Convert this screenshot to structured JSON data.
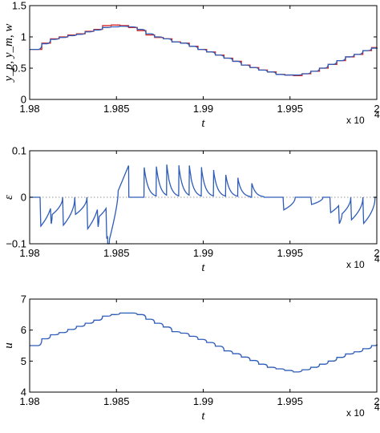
{
  "chart_data": [
    {
      "type": "line",
      "xlabel": "t",
      "ylabel": "y_p, y_m, w",
      "x_multiplier": "x 10",
      "x_multiplier_exp": "4",
      "xlim": [
        1.98,
        2.0
      ],
      "ylim": [
        0,
        1.5
      ],
      "xticks": [
        "1.98",
        "1.985",
        "1.99",
        "1.995",
        "2"
      ],
      "yticks": [
        "0",
        "0.5",
        "1",
        "1.5"
      ],
      "grid": false,
      "series": [
        {
          "color": "#d62728",
          "style": "step",
          "x": [
            1.98,
            1.9807,
            1.9812,
            1.9817,
            1.9822,
            1.9827,
            1.9832,
            1.9837,
            1.9842,
            1.9847,
            1.9852,
            1.9857,
            1.9862,
            1.9867,
            1.9872,
            1.9877,
            1.9882,
            1.9887,
            1.9892,
            1.9897,
            1.9902,
            1.9907,
            1.9912,
            1.9917,
            1.9922,
            1.9927,
            1.9932,
            1.9937,
            1.9942,
            1.9947,
            1.9952,
            1.9957,
            1.9962,
            1.9967,
            1.9972,
            1.9977,
            1.9982,
            1.9987,
            1.9992,
            1.9997,
            2.0
          ],
          "y": [
            0.8,
            0.9,
            0.97,
            1.0,
            1.03,
            1.05,
            1.09,
            1.12,
            1.18,
            1.19,
            1.18,
            1.15,
            1.1,
            1.03,
            0.99,
            0.97,
            0.92,
            0.9,
            0.85,
            0.8,
            0.76,
            0.71,
            0.66,
            0.61,
            0.55,
            0.51,
            0.47,
            0.44,
            0.4,
            0.39,
            0.38,
            0.41,
            0.45,
            0.5,
            0.56,
            0.62,
            0.68,
            0.72,
            0.78,
            0.83,
            0.83
          ]
        },
        {
          "color": "#2e5cb8",
          "style": "smooth-step",
          "x": [
            1.98,
            1.9807,
            1.9812,
            1.9817,
            1.9822,
            1.9827,
            1.9832,
            1.9837,
            1.9842,
            1.9847,
            1.9852,
            1.9857,
            1.9862,
            1.9867,
            1.9872,
            1.9877,
            1.9882,
            1.9887,
            1.9892,
            1.9897,
            1.9902,
            1.9907,
            1.9912,
            1.9917,
            1.9922,
            1.9927,
            1.9932,
            1.9937,
            1.9942,
            1.9947,
            1.9952,
            1.9957,
            1.9962,
            1.9967,
            1.9972,
            1.9977,
            1.9982,
            1.9987,
            1.9992,
            1.9997,
            2.0
          ],
          "y": [
            0.8,
            0.89,
            0.96,
            0.99,
            1.02,
            1.04,
            1.08,
            1.11,
            1.15,
            1.16,
            1.17,
            1.16,
            1.12,
            1.05,
            1.0,
            0.97,
            0.92,
            0.9,
            0.85,
            0.8,
            0.76,
            0.71,
            0.66,
            0.61,
            0.55,
            0.51,
            0.47,
            0.44,
            0.4,
            0.39,
            0.39,
            0.41,
            0.45,
            0.5,
            0.56,
            0.62,
            0.68,
            0.72,
            0.78,
            0.82,
            0.82
          ]
        }
      ]
    },
    {
      "type": "line",
      "xlabel": "t",
      "ylabel": "ε",
      "x_multiplier": "x 10",
      "x_multiplier_exp": "4",
      "xlim": [
        1.98,
        2.0
      ],
      "ylim": [
        -0.1,
        0.1
      ],
      "xticks": [
        "1.98",
        "1.985",
        "1.99",
        "1.995",
        "2"
      ],
      "yticks": [
        "−0.1",
        "0",
        "0.1"
      ],
      "grid": false,
      "zero_line": true,
      "series": [
        {
          "color": "#2e5cb8",
          "style": "spikes",
          "spikes": [
            {
              "x": 1.9806,
              "amp": -0.064
            },
            {
              "x": 1.9812,
              "amp": -0.04
            },
            {
              "x": 1.9819,
              "amp": -0.062
            },
            {
              "x": 1.9826,
              "amp": -0.038
            },
            {
              "x": 1.9833,
              "amp": -0.07
            },
            {
              "x": 1.9839,
              "amp": -0.045
            },
            {
              "x": 1.9844,
              "amp": -0.07
            },
            {
              "x": 1.9866,
              "amp": 0.064
            },
            {
              "x": 1.9873,
              "amp": 0.066
            },
            {
              "x": 1.9879,
              "amp": 0.066
            },
            {
              "x": 1.9886,
              "amp": 0.066
            },
            {
              "x": 1.9892,
              "amp": 0.064
            },
            {
              "x": 1.9899,
              "amp": 0.062
            },
            {
              "x": 1.9906,
              "amp": 0.056
            },
            {
              "x": 1.9913,
              "amp": 0.048
            },
            {
              "x": 1.992,
              "amp": 0.04
            },
            {
              "x": 1.9928,
              "amp": 0.03
            },
            {
              "x": 1.9946,
              "amp": -0.028
            },
            {
              "x": 1.9962,
              "amp": -0.016
            },
            {
              "x": 1.9973,
              "amp": -0.034
            },
            {
              "x": 1.9978,
              "amp": -0.042
            },
            {
              "x": 1.9985,
              "amp": -0.05
            },
            {
              "x": 1.9992,
              "amp": -0.058
            }
          ],
          "ramp": {
            "x0": 1.9845,
            "x1": 1.9857,
            "y0": -0.04,
            "y1": 0.068
          }
        }
      ]
    },
    {
      "type": "line",
      "xlabel": "t",
      "ylabel": "u",
      "x_multiplier": "x 10",
      "x_multiplier_exp": "4",
      "xlim": [
        1.98,
        2.0
      ],
      "ylim": [
        4,
        7
      ],
      "xticks": [
        "1.98",
        "1.985",
        "1.99",
        "1.995",
        "2"
      ],
      "yticks": [
        "4",
        "5",
        "6",
        "7"
      ],
      "grid": false,
      "series": [
        {
          "color": "#2e5cb8",
          "style": "smooth-step",
          "x": [
            1.98,
            1.9807,
            1.9812,
            1.9817,
            1.9822,
            1.9827,
            1.9832,
            1.9837,
            1.9842,
            1.9847,
            1.9852,
            1.9857,
            1.9862,
            1.9867,
            1.9872,
            1.9877,
            1.9882,
            1.9887,
            1.9892,
            1.9897,
            1.9902,
            1.9907,
            1.9912,
            1.9917,
            1.9922,
            1.9927,
            1.9932,
            1.9937,
            1.9942,
            1.9947,
            1.9952,
            1.9957,
            1.9962,
            1.9967,
            1.9972,
            1.9977,
            1.9982,
            1.9987,
            1.9992,
            1.9997,
            2.0
          ],
          "y": [
            5.5,
            5.72,
            5.85,
            5.92,
            6.02,
            6.12,
            6.22,
            6.32,
            6.45,
            6.5,
            6.55,
            6.55,
            6.5,
            6.35,
            6.22,
            6.1,
            5.95,
            5.9,
            5.8,
            5.7,
            5.6,
            5.48,
            5.33,
            5.24,
            5.13,
            5.02,
            4.9,
            4.8,
            4.75,
            4.7,
            4.65,
            4.72,
            4.8,
            4.9,
            5.0,
            5.12,
            5.23,
            5.3,
            5.4,
            5.5,
            5.52
          ]
        }
      ]
    }
  ]
}
